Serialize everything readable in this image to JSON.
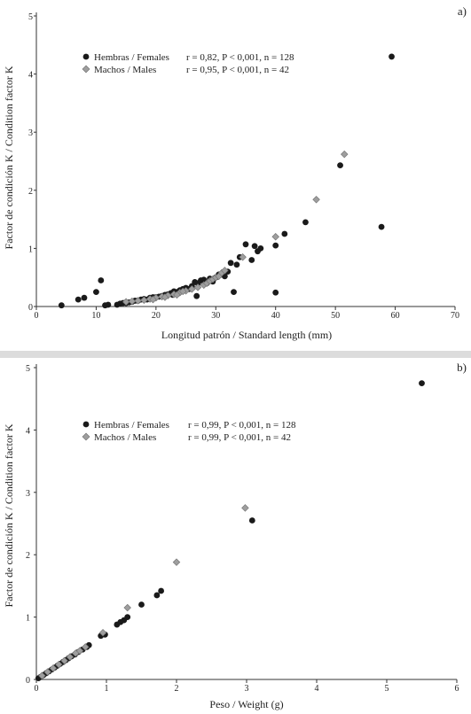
{
  "chart_data": [
    {
      "type": "scatter",
      "panel_label": "a)",
      "xlabel": "Longitud patrón / Standard length (mm)",
      "ylabel": "Factor de condición K / Condition factor K",
      "xlim": [
        0,
        70
      ],
      "ylim": [
        0,
        5
      ],
      "xticks": [
        0,
        10,
        20,
        30,
        40,
        50,
        60,
        70
      ],
      "yticks": [
        0,
        1,
        2,
        3,
        4,
        5
      ],
      "legend_position": "top-left",
      "series": [
        {
          "name": "Hembras / Females",
          "stats": "r = 0,82,  P < 0,001, n = 128",
          "color": "#1a1a1a",
          "marker": "circle",
          "points": [
            [
              4.2,
              0.02
            ],
            [
              7,
              0.12
            ],
            [
              8,
              0.15
            ],
            [
              10,
              0.25
            ],
            [
              10.8,
              0.45
            ],
            [
              11.5,
              0.02
            ],
            [
              12,
              0.03
            ],
            [
              13.5,
              0.03
            ],
            [
              14,
              0.05
            ],
            [
              14.5,
              0.06
            ],
            [
              15,
              0.06
            ],
            [
              15.5,
              0.07
            ],
            [
              16,
              0.08
            ],
            [
              16.5,
              0.1
            ],
            [
              17,
              0.1
            ],
            [
              17.5,
              0.12
            ],
            [
              18,
              0.13
            ],
            [
              18.5,
              0.12
            ],
            [
              19,
              0.15
            ],
            [
              19.5,
              0.16
            ],
            [
              20,
              0.16
            ],
            [
              20.5,
              0.17
            ],
            [
              21,
              0.18
            ],
            [
              21.5,
              0.2
            ],
            [
              22,
              0.21
            ],
            [
              22.5,
              0.23
            ],
            [
              23,
              0.26
            ],
            [
              23.5,
              0.25
            ],
            [
              24,
              0.28
            ],
            [
              24.5,
              0.3
            ],
            [
              25,
              0.32
            ],
            [
              25.5,
              0.3
            ],
            [
              26,
              0.35
            ],
            [
              26.5,
              0.42
            ],
            [
              27,
              0.4
            ],
            [
              27.5,
              0.45
            ],
            [
              28,
              0.46
            ],
            [
              28.5,
              0.4
            ],
            [
              29,
              0.48
            ],
            [
              29.5,
              0.43
            ],
            [
              30,
              0.5
            ],
            [
              30.5,
              0.55
            ],
            [
              31,
              0.55
            ],
            [
              31.5,
              0.52
            ],
            [
              32,
              0.6
            ],
            [
              32.5,
              0.75
            ],
            [
              33,
              0.25
            ],
            [
              33.5,
              0.72
            ],
            [
              34,
              0.85
            ],
            [
              35,
              1.07
            ],
            [
              36,
              0.8
            ],
            [
              36.5,
              1.04
            ],
            [
              37,
              0.95
            ],
            [
              37.5,
              1.0
            ],
            [
              40,
              0.24
            ],
            [
              40,
              1.05
            ],
            [
              41.5,
              1.25
            ],
            [
              45,
              1.45
            ],
            [
              50.8,
              2.43
            ],
            [
              57.7,
              1.37
            ],
            [
              59.4,
              4.3
            ],
            [
              26.8,
              0.18
            ],
            [
              22.8,
              0.2
            ]
          ]
        },
        {
          "name": "Machos / Males",
          "stats": "r = 0,95,  P < 0,001, n = 42",
          "color": "#9e9e9e",
          "marker": "diamond",
          "points": [
            [
              15,
              0.08
            ],
            [
              16,
              0.09
            ],
            [
              17,
              0.1
            ],
            [
              18,
              0.11
            ],
            [
              19,
              0.13
            ],
            [
              20,
              0.15
            ],
            [
              21,
              0.17
            ],
            [
              22,
              0.19
            ],
            [
              23,
              0.21
            ],
            [
              24,
              0.24
            ],
            [
              25,
              0.27
            ],
            [
              26,
              0.3
            ],
            [
              27,
              0.33
            ],
            [
              28,
              0.37
            ],
            [
              28.5,
              0.4
            ],
            [
              29,
              0.44
            ],
            [
              29.5,
              0.47
            ],
            [
              30,
              0.5
            ],
            [
              30.5,
              0.52
            ],
            [
              31,
              0.58
            ],
            [
              31.5,
              0.62
            ],
            [
              34.5,
              0.85
            ],
            [
              40,
              1.2
            ],
            [
              46.8,
              1.84
            ],
            [
              51.5,
              2.62
            ],
            [
              19.5,
              0.12
            ],
            [
              21.5,
              0.16
            ],
            [
              23.5,
              0.2
            ],
            [
              24.5,
              0.26
            ]
          ]
        }
      ]
    },
    {
      "type": "scatter",
      "panel_label": "b)",
      "xlabel": "Peso / Weight (g)",
      "ylabel": "Factor de condición K / Condition factor K",
      "xlim": [
        0,
        6
      ],
      "ylim": [
        0,
        5
      ],
      "xticks": [
        0,
        1,
        2,
        3,
        4,
        5,
        6
      ],
      "yticks": [
        0,
        1,
        2,
        3,
        4,
        5
      ],
      "legend_position": "top-left",
      "series": [
        {
          "name": "Hembras / Females",
          "stats": "r = 0,99,  P < 0,001, n = 128",
          "color": "#1a1a1a",
          "marker": "circle",
          "points": [
            [
              0.03,
              0.02
            ],
            [
              0.06,
              0.04
            ],
            [
              0.1,
              0.07
            ],
            [
              0.14,
              0.1
            ],
            [
              0.18,
              0.13
            ],
            [
              0.22,
              0.16
            ],
            [
              0.26,
              0.19
            ],
            [
              0.3,
              0.22
            ],
            [
              0.34,
              0.25
            ],
            [
              0.38,
              0.28
            ],
            [
              0.42,
              0.31
            ],
            [
              0.46,
              0.34
            ],
            [
              0.5,
              0.37
            ],
            [
              0.55,
              0.4
            ],
            [
              0.6,
              0.44
            ],
            [
              0.66,
              0.48
            ],
            [
              0.72,
              0.52
            ],
            [
              0.75,
              0.55
            ],
            [
              0.92,
              0.7
            ],
            [
              0.98,
              0.72
            ],
            [
              1.15,
              0.88
            ],
            [
              1.2,
              0.92
            ],
            [
              1.25,
              0.95
            ],
            [
              1.3,
              1.0
            ],
            [
              1.5,
              1.2
            ],
            [
              1.72,
              1.35
            ],
            [
              1.78,
              1.42
            ],
            [
              3.08,
              2.55
            ],
            [
              5.5,
              4.75
            ]
          ]
        },
        {
          "name": "Machos / Males",
          "stats": "r = 0,99,  P < 0,001, n = 42",
          "color": "#9e9e9e",
          "marker": "diamond",
          "points": [
            [
              0.08,
              0.06
            ],
            [
              0.16,
              0.12
            ],
            [
              0.24,
              0.18
            ],
            [
              0.32,
              0.24
            ],
            [
              0.4,
              0.3
            ],
            [
              0.48,
              0.36
            ],
            [
              0.56,
              0.42
            ],
            [
              0.62,
              0.46
            ],
            [
              0.7,
              0.52
            ],
            [
              0.95,
              0.75
            ],
            [
              1.3,
              1.15
            ],
            [
              2.0,
              1.88
            ],
            [
              2.98,
              2.75
            ]
          ]
        }
      ]
    }
  ]
}
